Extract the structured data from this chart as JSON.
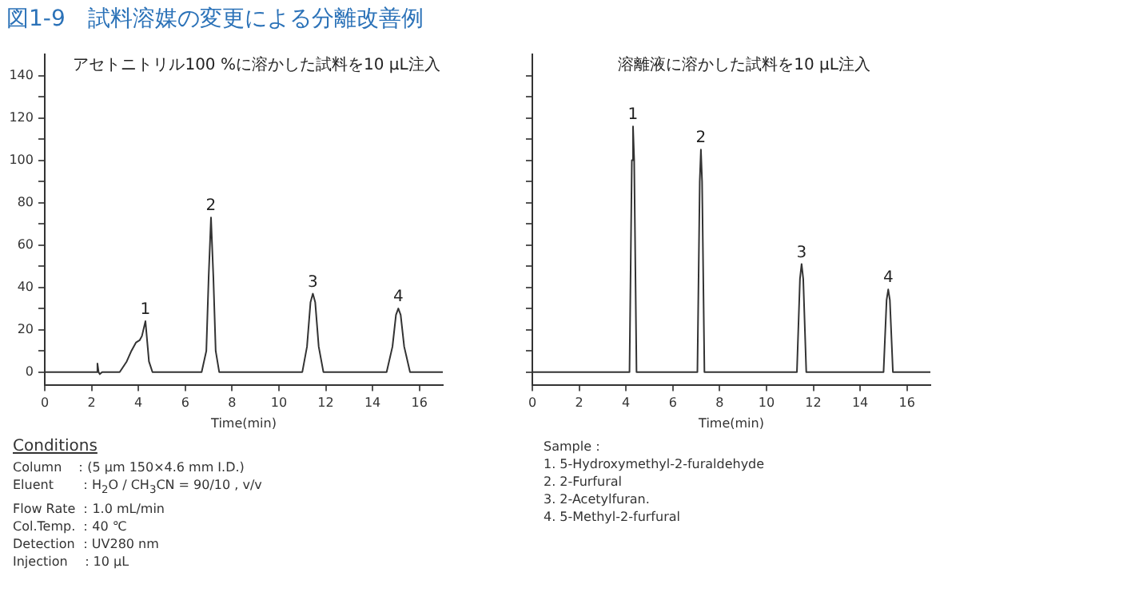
{
  "chart_data": [
    {
      "type": "line",
      "title": "図1-9　試料溶媒の変更による分離改善例",
      "subtitle": "アセトニトリル100 %に溶かした試料を10 μL注入",
      "xlabel": "Time(min)",
      "xlim": [
        0,
        17
      ],
      "xticks": [
        0,
        2,
        4,
        6,
        8,
        10,
        12,
        14,
        16
      ],
      "ylim": [
        -6,
        150
      ],
      "yticks": [
        0,
        20,
        40,
        60,
        80,
        100,
        120,
        140
      ],
      "grid": false,
      "legend": false,
      "marker": "none",
      "line_style": "solid",
      "x": [
        0,
        2.2,
        2.25,
        2.3,
        2.35,
        2.45,
        3.2,
        3.5,
        3.7,
        3.9,
        4.05,
        4.15,
        4.3,
        4.45,
        4.6,
        6.7,
        6.9,
        7.0,
        7.1,
        7.2,
        7.3,
        7.45,
        11.0,
        11.2,
        11.35,
        11.45,
        11.55,
        11.7,
        11.9,
        14.6,
        14.85,
        15.0,
        15.1,
        15.2,
        15.35,
        15.6,
        17
      ],
      "series": [
        {
          "color": "#333333",
          "values": [
            0,
            0,
            4,
            0,
            -1,
            0,
            0,
            5,
            10,
            14,
            15,
            17,
            24,
            5,
            0,
            0,
            10,
            45,
            73,
            45,
            10,
            0,
            0,
            12,
            33,
            37,
            33,
            12,
            0,
            0,
            12,
            27,
            30,
            27,
            12,
            0,
            0
          ]
        }
      ],
      "annotations": [
        {
          "text": "1",
          "x": 4.3,
          "y": 24
        },
        {
          "text": "2",
          "x": 7.1,
          "y": 73
        },
        {
          "text": "3",
          "x": 11.45,
          "y": 37
        },
        {
          "text": "4",
          "x": 15.1,
          "y": 30
        },
        "Conditions",
        "Column　：(5 μm  150×4.6 mm I.D.)",
        "Eluent　　：H$_{2}$O / CH$_{3}$CN = 90/10 , v/v",
        "Flow Rate ：1.0 mL/min",
        "Col.Temp. ：40 ℃",
        "Detection ：UV280 nm",
        "Injection　：10 μL"
      ]
    },
    {
      "type": "line",
      "title": "溶離液に溶かした試料を10 μL注入",
      "xlabel": "Time(min)",
      "xlim": [
        0,
        17
      ],
      "xticks": [
        0,
        2,
        4,
        6,
        8,
        10,
        12,
        14,
        16
      ],
      "ylim": [
        -6,
        150
      ],
      "yticks": [
        0,
        20,
        40,
        60,
        80,
        100,
        120,
        140
      ],
      "tick_labels": "x",
      "grid": false,
      "legend": false,
      "marker": "none",
      "line_style": "solid",
      "x": [
        0,
        4.15,
        4.25,
        4.3,
        4.35,
        4.45,
        7.05,
        7.15,
        7.2,
        7.25,
        7.35,
        11.3,
        11.43,
        11.5,
        11.57,
        11.7,
        15.0,
        15.13,
        15.2,
        15.27,
        15.4,
        17
      ],
      "series": [
        {
          "color": "#333333",
          "values": [
            0,
            0,
            100,
            116,
            100,
            0,
            0,
            90,
            105,
            90,
            0,
            0,
            44,
            51,
            44,
            0,
            0,
            34,
            39,
            34,
            0,
            0
          ]
        }
      ],
      "annotations": [
        {
          "text": "1",
          "x": 4.3,
          "y": 116
        },
        {
          "text": "2",
          "x": 7.2,
          "y": 105
        },
        {
          "text": "3",
          "x": 11.5,
          "y": 51
        },
        {
          "text": "4",
          "x": 15.2,
          "y": 39
        },
        "Sample：",
        "1. 5-Hydroxymethyl-2-furaldehyde",
        "2. 2-Furfural",
        "3. 2-Acetylfuran.",
        "4. 5-Methyl-2-furfural"
      ]
    }
  ]
}
